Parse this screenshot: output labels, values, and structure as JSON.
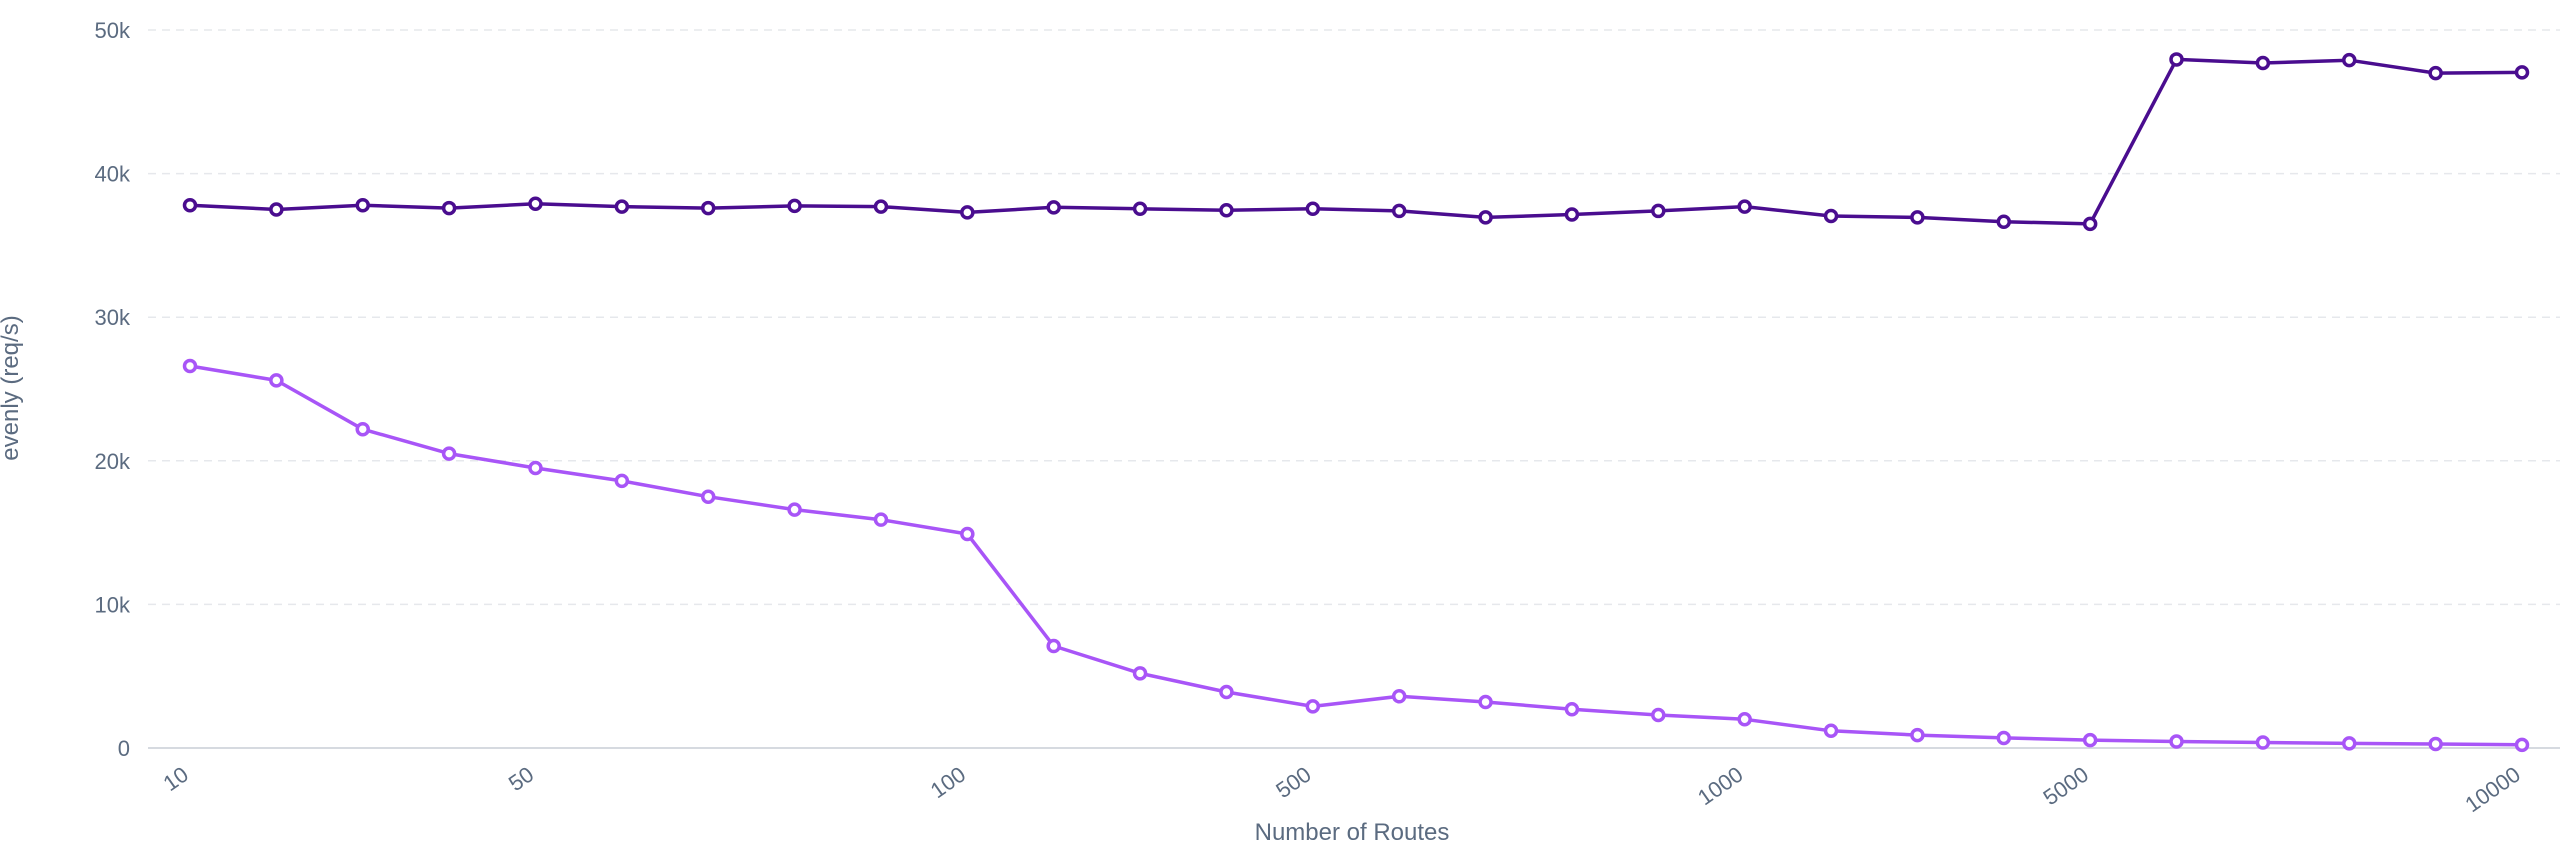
{
  "chart_data": {
    "type": "line",
    "title": "",
    "xlabel": "Number of Routes",
    "ylabel": "evenly (req/s)",
    "x_tick_labels": [
      "10",
      "50",
      "100",
      "500",
      "1000",
      "5000",
      "10000"
    ],
    "x_tick_indices": [
      0,
      4,
      9,
      13,
      18,
      22,
      27
    ],
    "y_ticks": [
      0,
      10000,
      20000,
      30000,
      40000,
      50000
    ],
    "y_tick_labels": [
      "0",
      "10k",
      "20k",
      "30k",
      "40k",
      "50k"
    ],
    "ylim": [
      0,
      50000
    ],
    "point_count": 28,
    "grid": true,
    "legend": "none",
    "series": [
      {
        "color": "#4a0d8f",
        "values": [
          37800,
          37500,
          37800,
          37600,
          37900,
          37700,
          37600,
          37750,
          37700,
          37300,
          37650,
          37550,
          37450,
          37550,
          37400,
          36950,
          37150,
          37400,
          37700,
          37050,
          36950,
          36650,
          36500,
          47950,
          47700,
          47900,
          47000,
          47050
        ]
      },
      {
        "color": "#a855f7",
        "values": [
          26600,
          25600,
          22200,
          20500,
          19500,
          18600,
          17500,
          16600,
          15900,
          14900,
          7100,
          5200,
          3900,
          2900,
          3600,
          3200,
          2700,
          2300,
          2000,
          1200,
          900,
          700,
          550,
          450,
          380,
          320,
          280,
          220
        ]
      }
    ]
  }
}
